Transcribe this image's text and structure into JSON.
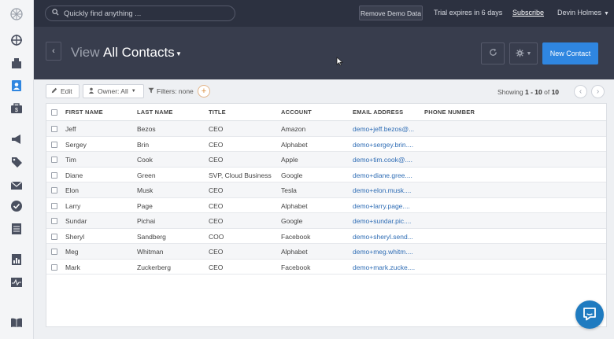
{
  "topbar": {
    "search_placeholder": "Quickly find anything ...",
    "remove_demo_label": "Remove Demo Data",
    "trial_text": "Trial expires in 6 days",
    "subscribe_label": "Subscribe",
    "user_name": "Devin Holmes"
  },
  "header": {
    "view_label": "View",
    "view_name": "All Contacts",
    "new_contact_label": "New Contact"
  },
  "toolbar": {
    "edit_label": "Edit",
    "owner_label": "Owner: All",
    "filters_label": "Filters: none",
    "add_filter_label": "+",
    "showing_prefix": "Showing",
    "showing_range": "1 - 10",
    "showing_of": "of",
    "showing_total": "10"
  },
  "table": {
    "columns": [
      "FIRST NAME",
      "LAST NAME",
      "TITLE",
      "ACCOUNT",
      "EMAIL ADDRESS",
      "PHONE NUMBER"
    ],
    "rows": [
      {
        "first": "Jeff",
        "last": "Bezos",
        "title": "CEO",
        "account": "Amazon",
        "email": "demo+jeff.bezos@...",
        "phone": ""
      },
      {
        "first": "Sergey",
        "last": "Brin",
        "title": "CEO",
        "account": "Alphabet",
        "email": "demo+sergey.brin....",
        "phone": ""
      },
      {
        "first": "Tim",
        "last": "Cook",
        "title": "CEO",
        "account": "Apple",
        "email": "demo+tim.cook@....",
        "phone": ""
      },
      {
        "first": "Diane",
        "last": "Green",
        "title": "SVP, Cloud Business",
        "account": "Google",
        "email": "demo+diane.gree....",
        "phone": ""
      },
      {
        "first": "Elon",
        "last": "Musk",
        "title": "CEO",
        "account": "Tesla",
        "email": "demo+elon.musk....",
        "phone": ""
      },
      {
        "first": "Larry",
        "last": "Page",
        "title": "CEO",
        "account": "Alphabet",
        "email": "demo+larry.page....",
        "phone": ""
      },
      {
        "first": "Sundar",
        "last": "Pichai",
        "title": "CEO",
        "account": "Google",
        "email": "demo+sundar.pic....",
        "phone": ""
      },
      {
        "first": "Sheryl",
        "last": "Sandberg",
        "title": "COO",
        "account": "Facebook",
        "email": "demo+sheryl.send...",
        "phone": ""
      },
      {
        "first": "Meg",
        "last": "Whitman",
        "title": "CEO",
        "account": "Alphabet",
        "email": "demo+meg.whitm....",
        "phone": ""
      },
      {
        "first": "Mark",
        "last": "Zuckerberg",
        "title": "CEO",
        "account": "Facebook",
        "email": "demo+mark.zucke....",
        "phone": ""
      }
    ]
  },
  "sidebar": {
    "icons": [
      "logo-icon",
      "dashboard-icon",
      "companies-icon",
      "contacts-icon",
      "deals-icon",
      "campaigns-icon",
      "tags-icon",
      "email-icon",
      "tasks-icon",
      "notes-icon",
      "reports-icon",
      "activity-icon",
      "help-book-icon"
    ]
  },
  "colors": {
    "topbar": "#2c3140",
    "header": "#383d4d",
    "accent": "#2f86e0",
    "chat": "#1f7bc0"
  }
}
